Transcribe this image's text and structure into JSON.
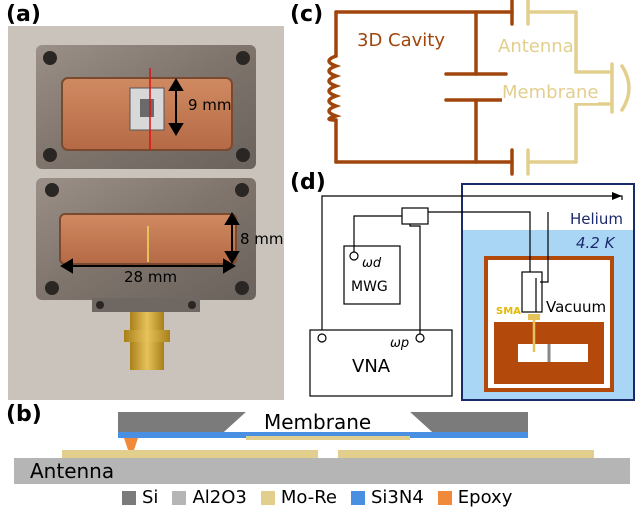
{
  "panels": {
    "a": "(a)",
    "b": "(b)",
    "c": "(c)",
    "d": "(d)"
  },
  "photo": {
    "dim_9mm": "9 mm",
    "dim_8mm": "8 mm",
    "dim_28mm": "28 mm"
  },
  "circuit_c": {
    "cavity_label": "3D Cavity",
    "antenna_label": "Antenna",
    "membrane_label": "Membrane",
    "cavity_color": "#a0450c",
    "external_color": "#e2cf8e"
  },
  "setup_d": {
    "helium_label": "Helium",
    "temperature_label": "4.2 K",
    "vacuum_label": "Vacuum",
    "sma_label": "SMA",
    "mwg_label": "MWG",
    "vna_label": "VNA",
    "omega_d_label": "ωd",
    "omega_p_label": "ωp",
    "helium_color": "#a9d6f5",
    "frame_color": "#1b2a6b",
    "vacuum_color": "#b34a0c"
  },
  "cross_section": {
    "membrane_label": "Membrane",
    "antenna_label": "Antenna"
  },
  "legend": {
    "items": [
      {
        "label": "Si",
        "color": "#7b7b7b"
      },
      {
        "label": "Al2O3",
        "color": "#b5b5b5"
      },
      {
        "label": "Mo-Re",
        "color": "#e2cf8e"
      },
      {
        "label": "Si3N4",
        "color": "#4a90e2"
      },
      {
        "label": "Epoxy",
        "color": "#f08a3a"
      }
    ]
  }
}
